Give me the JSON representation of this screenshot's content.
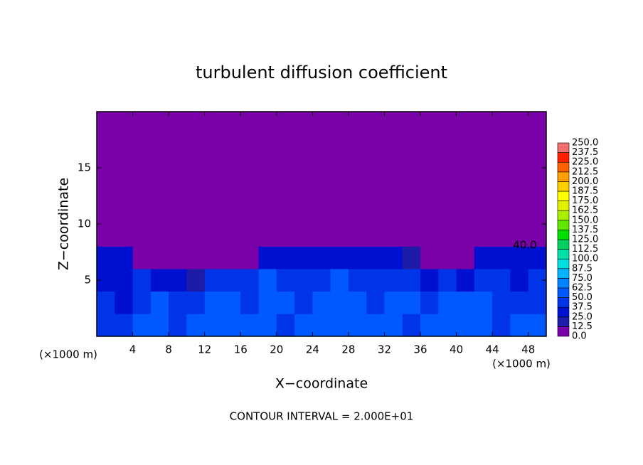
{
  "chart_data": {
    "type": "heatmap",
    "title": "turbulent diffusion coefficient",
    "xlabel": "X−coordinate",
    "ylabel": "Z−coordinate",
    "xunit": "(×1000 m)",
    "yunit": "(×1000 m)",
    "note": "CONTOUR INTERVAL = 2.000E+01",
    "annotation": "40.0",
    "xlim": [
      0,
      50
    ],
    "ylim": [
      0,
      20
    ],
    "xticks": [
      4,
      8,
      12,
      16,
      20,
      24,
      28,
      32,
      36,
      40,
      44,
      48
    ],
    "yticks": [
      5,
      10,
      15
    ],
    "xbins": [
      0,
      2,
      4,
      6,
      8,
      10,
      12,
      14,
      16,
      18,
      20,
      22,
      24,
      26,
      28,
      30,
      32,
      34,
      36,
      38,
      40,
      42,
      44,
      46,
      48,
      50
    ],
    "zbins": [
      0,
      2,
      4,
      6,
      8,
      10
    ],
    "values": [
      [
        45,
        40,
        55,
        50,
        45,
        55,
        50,
        60,
        55,
        50,
        45,
        55,
        60,
        50,
        55,
        60,
        50,
        45,
        55,
        60,
        55,
        50,
        45,
        55,
        50
      ],
      [
        40,
        35,
        45,
        50,
        45,
        40,
        50,
        55,
        45,
        50,
        60,
        45,
        50,
        55,
        50,
        45,
        55,
        50,
        45,
        50,
        60,
        55,
        45,
        40,
        45
      ],
      [
        35,
        30,
        40,
        30,
        25,
        20,
        40,
        45,
        40,
        50,
        45,
        40,
        45,
        50,
        45,
        40,
        45,
        40,
        35,
        40,
        30,
        45,
        40,
        35,
        40
      ],
      [
        35,
        30,
        12,
        5,
        0,
        0,
        0,
        5,
        10,
        25,
        30,
        30,
        30,
        30,
        35,
        35,
        30,
        20,
        5,
        5,
        5,
        30,
        35,
        35,
        30
      ],
      [
        0,
        0,
        0,
        0,
        0,
        0,
        0,
        0,
        0,
        0,
        0,
        0,
        0,
        12,
        12,
        12,
        0,
        0,
        0,
        0,
        0,
        0,
        0,
        0,
        0
      ]
    ],
    "levels": [
      {
        "value": 0,
        "label": "0.0"
      },
      {
        "value": 12.5,
        "label": "12.5"
      },
      {
        "value": 25,
        "label": "25.0"
      },
      {
        "value": 37.5,
        "label": "37.5"
      },
      {
        "value": 50,
        "label": "50.0"
      },
      {
        "value": 62.5,
        "label": "62.5"
      },
      {
        "value": 75,
        "label": "75.0"
      },
      {
        "value": 87.5,
        "label": "87.5"
      },
      {
        "value": 100,
        "label": "100.0"
      },
      {
        "value": 112.5,
        "label": "112.5"
      },
      {
        "value": 125,
        "label": "125.0"
      },
      {
        "value": 137.5,
        "label": "137.5"
      },
      {
        "value": 150,
        "label": "150.0"
      },
      {
        "value": 162.5,
        "label": "162.5"
      },
      {
        "value": 175,
        "label": "175.0"
      },
      {
        "value": 187.5,
        "label": "187.5"
      },
      {
        "value": 200,
        "label": "200.0"
      },
      {
        "value": 212.5,
        "label": "212.5"
      },
      {
        "value": 225,
        "label": "225.0"
      },
      {
        "value": 237.5,
        "label": "237.5"
      },
      {
        "value": 250,
        "label": "250.0"
      }
    ],
    "colors": [
      "#7a00a8",
      "#1c1ca8",
      "#0010d0",
      "#0034e8",
      "#0058ff",
      "#0084ff",
      "#00b4ff",
      "#00e0e0",
      "#00e0a8",
      "#00d060",
      "#00e000",
      "#60e800",
      "#a8f000",
      "#e0f000",
      "#ffff00",
      "#ffd000",
      "#ffa000",
      "#ff6000",
      "#ff2000",
      "#f07070"
    ]
  }
}
